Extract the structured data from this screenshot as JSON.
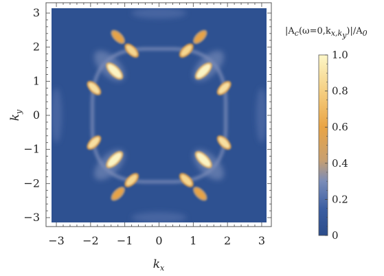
{
  "chart_data": {
    "type": "heatmap",
    "title": "",
    "xlabel": "k_x",
    "ylabel": "k_y",
    "xlim": [
      -3.14159,
      3.14159
    ],
    "ylim": [
      -3.14159,
      3.14159
    ],
    "xticks": [
      -3,
      -2,
      -1,
      0,
      1,
      2,
      3
    ],
    "yticks": [
      -3,
      -2,
      -1,
      0,
      1,
      2,
      3
    ],
    "xtick_labels": [
      "−3",
      "−2",
      "−1",
      "0",
      "1",
      "2",
      "3"
    ],
    "ytick_labels": [
      "−3",
      "−2",
      "−1",
      "0",
      "1",
      "2",
      "3"
    ],
    "grid": false,
    "colorbar": {
      "title": "|A_c(ω=0,k_{x,k_y})|/A_0",
      "range": [
        0,
        1
      ],
      "ticks": [
        0,
        0.2,
        0.4,
        0.6,
        0.8,
        1.0
      ],
      "tick_labels": [
        "0",
        "0.2",
        "0.4",
        "0.6",
        "0.8",
        "1.0"
      ],
      "colors": [
        "#2b4c8a",
        "#3b5ea2",
        "#7a8cb8",
        "#c8a070",
        "#e9a445",
        "#f5cf82",
        "#fdf7c8"
      ],
      "stops": [
        0,
        0.15,
        0.3,
        0.42,
        0.6,
        0.8,
        1.0
      ]
    },
    "description_points": [
      {
        "kx": -1.3,
        "ky": 1.3,
        "value": 1.0
      },
      {
        "kx": 1.3,
        "ky": 1.3,
        "value": 1.0
      },
      {
        "kx": -1.3,
        "ky": -1.3,
        "value": 1.0
      },
      {
        "kx": 1.3,
        "ky": -1.3,
        "value": 1.0
      },
      {
        "kx": -1.9,
        "ky": 0.8,
        "value": 0.9
      },
      {
        "kx": 1.9,
        "ky": 0.8,
        "value": 0.9
      },
      {
        "kx": -1.9,
        "ky": -0.8,
        "value": 0.9
      },
      {
        "kx": 1.9,
        "ky": -0.8,
        "value": 0.9
      },
      {
        "kx": -0.8,
        "ky": 1.9,
        "value": 0.85
      },
      {
        "kx": 0.8,
        "ky": 1.9,
        "value": 0.85
      },
      {
        "kx": -0.8,
        "ky": -1.9,
        "value": 0.85
      },
      {
        "kx": 0.8,
        "ky": -1.9,
        "value": 0.85
      },
      {
        "kx": -1.2,
        "ky": 2.3,
        "value": 0.6
      },
      {
        "kx": 1.2,
        "ky": 2.3,
        "value": 0.6
      },
      {
        "kx": -1.2,
        "ky": -2.3,
        "value": 0.6
      },
      {
        "kx": 1.2,
        "ky": -2.3,
        "value": 0.6
      },
      {
        "kx": 0.0,
        "ky": 0.0,
        "value": 0.05
      }
    ]
  }
}
